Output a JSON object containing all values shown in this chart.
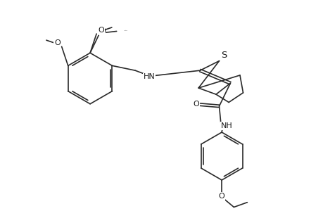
{
  "bg_color": "#ffffff",
  "line_color": "#2a2a2a",
  "figsize": [
    4.6,
    3.0
  ],
  "dpi": 100,
  "bond_width": 1.2,
  "font_size": 8.0,
  "label_color": "#1a1a1a",
  "xlim": [
    0,
    10
  ],
  "ylim": [
    0,
    6.5
  ]
}
